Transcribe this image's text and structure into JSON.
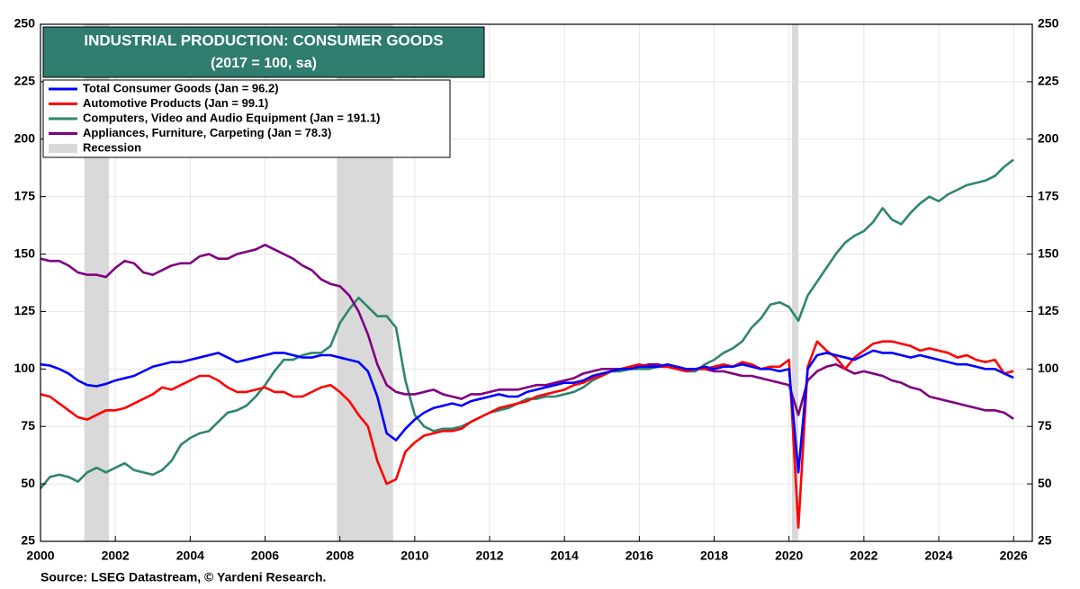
{
  "chart_data": {
    "type": "line",
    "title": "INDUSTRIAL PRODUCTION: CONSUMER GOODS",
    "subtitle": "(2017 = 100, sa)",
    "source": "Source: LSEG Datastream, © Yardeni Research.",
    "x": [
      2000,
      2000.25,
      2000.5,
      2000.75,
      2001,
      2001.25,
      2001.5,
      2001.75,
      2002,
      2002.25,
      2002.5,
      2002.75,
      2003,
      2003.25,
      2003.5,
      2003.75,
      2004,
      2004.25,
      2004.5,
      2004.75,
      2005,
      2005.25,
      2005.5,
      2005.75,
      2006,
      2006.25,
      2006.5,
      2006.75,
      2007,
      2007.25,
      2007.5,
      2007.75,
      2008,
      2008.25,
      2008.5,
      2008.75,
      2009,
      2009.25,
      2009.5,
      2009.75,
      2010,
      2010.25,
      2010.5,
      2010.75,
      2011,
      2011.25,
      2011.5,
      2011.75,
      2012,
      2012.25,
      2012.5,
      2012.75,
      2013,
      2013.25,
      2013.5,
      2013.75,
      2014,
      2014.25,
      2014.5,
      2014.75,
      2015,
      2015.25,
      2015.5,
      2015.75,
      2016,
      2016.25,
      2016.5,
      2016.75,
      2017,
      2017.25,
      2017.5,
      2017.75,
      2018,
      2018.25,
      2018.5,
      2018.75,
      2019,
      2019.25,
      2019.5,
      2019.75,
      2020,
      2020.25,
      2020.5,
      2020.75,
      2021,
      2021.25,
      2021.5,
      2021.75,
      2022,
      2022.25,
      2022.5,
      2022.75,
      2023,
      2023.25,
      2023.5,
      2023.75,
      2024,
      2024.25,
      2024.5,
      2024.75,
      2025,
      2025.25,
      2025.5,
      2025.75,
      2026
    ],
    "series": [
      {
        "name": "Total Consumer Goods (Jan = 96.2)",
        "color": "#0000ff",
        "values": [
          102,
          101.5,
          100,
          98,
          95,
          93,
          92.5,
          93.5,
          95,
          96,
          97,
          99,
          101,
          102,
          103,
          103,
          104,
          105,
          106,
          107,
          105,
          103,
          104,
          105,
          106,
          107,
          107,
          106,
          105,
          105,
          106,
          106,
          105,
          104,
          103,
          99,
          88,
          72,
          69,
          74,
          78,
          81,
          83,
          84,
          85,
          84,
          86,
          87,
          88,
          89,
          88,
          88,
          90,
          91,
          92,
          93,
          94,
          94,
          95,
          97,
          98,
          99,
          100,
          100,
          101,
          101,
          101,
          102,
          101,
          100,
          100,
          101,
          100,
          101,
          101,
          102,
          101,
          100,
          100,
          99,
          100,
          55,
          100,
          106,
          107,
          106,
          105,
          104,
          106,
          108,
          107,
          107,
          106,
          105,
          106,
          105,
          104,
          103,
          102,
          102,
          101,
          100,
          100,
          98,
          96.2
        ]
      },
      {
        "name": "Automotive Products (Jan = 99.1)",
        "color": "#ff0000",
        "values": [
          89,
          88,
          85,
          82,
          79,
          78,
          80,
          82,
          82,
          83,
          85,
          87,
          89,
          92,
          91,
          93,
          95,
          97,
          97,
          95,
          92,
          90,
          90,
          91,
          92,
          90,
          90,
          88,
          88,
          90,
          92,
          93,
          90,
          86,
          80,
          75,
          60,
          50,
          52,
          64,
          68,
          71,
          72,
          73,
          73,
          74,
          77,
          79,
          81,
          83,
          84,
          85,
          86,
          88,
          89,
          90,
          91,
          93,
          94,
          96,
          97,
          99,
          100,
          101,
          102,
          101,
          101,
          101,
          100,
          99,
          100,
          100,
          101,
          102,
          101,
          103,
          102,
          100,
          101,
          101,
          104,
          31,
          101,
          112,
          108,
          105,
          100,
          105,
          108,
          111,
          112,
          112,
          111,
          110,
          108,
          109,
          108,
          107,
          105,
          106,
          104,
          103,
          104,
          98,
          99.1
        ]
      },
      {
        "name": "Computers, Video and Audio Equipment (Jan = 191.1)",
        "color": "#2e8570",
        "values": [
          48,
          53,
          54,
          53,
          51,
          55,
          57,
          55,
          57,
          59,
          56,
          55,
          54,
          56,
          60,
          67,
          70,
          72,
          73,
          77,
          81,
          82,
          84,
          88,
          93,
          99,
          104,
          104,
          106,
          107,
          107,
          110,
          120,
          126,
          131,
          127,
          123,
          123,
          118,
          95,
          80,
          75,
          73,
          74,
          74,
          75,
          77,
          79,
          81,
          82,
          83,
          85,
          87,
          87,
          88,
          88,
          89,
          90,
          92,
          95,
          97,
          99,
          99,
          100,
          100,
          100,
          101,
          101,
          100,
          99,
          99,
          102,
          104,
          107,
          109,
          112,
          118,
          122,
          128,
          129,
          127,
          121,
          132,
          138,
          144,
          150,
          155,
          158,
          160,
          164,
          170,
          165,
          163,
          168,
          172,
          175,
          173,
          176,
          178,
          180,
          181,
          182,
          184,
          188,
          191.1
        ]
      },
      {
        "name": "Appliances, Furniture, Carpeting (Jan = 78.3)",
        "color": "#800080",
        "values": [
          148,
          147,
          147,
          145,
          142,
          141,
          141,
          140,
          144,
          147,
          146,
          142,
          141,
          143,
          145,
          146,
          146,
          149,
          150,
          148,
          148,
          150,
          151,
          152,
          154,
          152,
          150,
          148,
          145,
          143,
          139,
          137,
          136,
          132,
          125,
          115,
          102,
          93,
          90,
          89,
          89,
          90,
          91,
          89,
          88,
          87,
          89,
          89,
          90,
          91,
          91,
          91,
          92,
          93,
          93,
          94,
          95,
          96,
          98,
          99,
          100,
          100,
          100,
          101,
          101,
          102,
          102,
          101,
          101,
          100,
          100,
          100,
          99,
          99,
          98,
          97,
          97,
          96,
          95,
          94,
          93,
          80,
          95,
          99,
          101,
          102,
          100,
          98,
          99,
          98,
          97,
          95,
          94,
          92,
          91,
          88,
          87,
          86,
          85,
          84,
          83,
          82,
          82,
          81,
          78.3
        ]
      }
    ],
    "recession_label": "Recession",
    "recessions": [
      [
        2001.17,
        2001.83
      ],
      [
        2007.92,
        2009.42
      ],
      [
        2020.08,
        2020.25
      ]
    ],
    "recession_color": "#d9d9d9",
    "xlim": [
      2000,
      2026.5
    ],
    "xticks": [
      2000,
      2002,
      2004,
      2006,
      2008,
      2010,
      2012,
      2014,
      2016,
      2018,
      2020,
      2022,
      2024,
      2026
    ],
    "ylim": [
      25,
      250
    ],
    "yticks": [
      25,
      50,
      75,
      100,
      125,
      150,
      175,
      200,
      225,
      250
    ],
    "y2lim": [
      25,
      250
    ],
    "y2ticks": [
      25,
      50,
      75,
      100,
      125,
      150,
      175,
      200,
      225,
      250
    ],
    "grid": true,
    "legend": "upper left"
  }
}
